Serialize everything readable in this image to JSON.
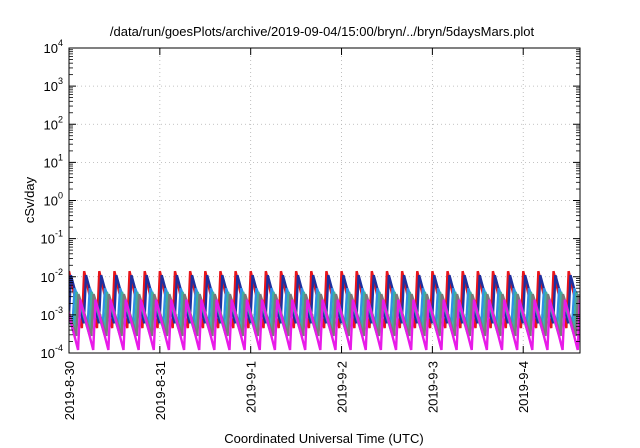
{
  "chart_data": {
    "type": "line",
    "title": "/data/run/goesPlots/archive/2019-09-04/15:00/bryn/../bryn/5daysMars.plot",
    "xlabel": "Coordinated Universal Time (UTC)",
    "ylabel": "cSv/day",
    "yscale": "log",
    "ylim": [
      0.0001,
      10000
    ],
    "xlim": [
      "2019-08-30T00:00",
      "2019-09-04T15:00"
    ],
    "grid": true,
    "legend": "none",
    "y_ticks": [
      {
        "base": "10",
        "exp": "-4"
      },
      {
        "base": "10",
        "exp": "-3"
      },
      {
        "base": "10",
        "exp": "-2"
      },
      {
        "base": "10",
        "exp": "-1"
      },
      {
        "base": "10",
        "exp": "0"
      },
      {
        "base": "10",
        "exp": "1"
      },
      {
        "base": "10",
        "exp": "2"
      },
      {
        "base": "10",
        "exp": "3"
      },
      {
        "base": "10",
        "exp": "4"
      }
    ],
    "x_ticks": [
      "2019-8-30",
      "2019-8-31",
      "2019-9-1",
      "2019-9-2",
      "2019-9-3",
      "2019-9-4"
    ],
    "x_tick_dates": [
      "2019-08-30T00:00",
      "2019-08-31T00:00",
      "2019-09-01T00:00",
      "2019-09-02T00:00",
      "2019-09-03T00:00",
      "2019-09-04T00:00"
    ],
    "sawtooth_period_hours": 4,
    "series": [
      {
        "color": "#e8141b",
        "peak": 0.014,
        "trough": 0.00045,
        "phase_hours": 0.0
      },
      {
        "color": "#1f2f9e",
        "peak": 0.011,
        "trough": 0.0006,
        "phase_hours": 0.5
      },
      {
        "color": "#2f8fe8",
        "peak": 0.005,
        "trough": 0.0005,
        "phase_hours": 1.5
      },
      {
        "color": "#3fb0a0",
        "peak": 0.004,
        "trough": 0.0003,
        "phase_hours": 2.0
      },
      {
        "color": "#7a7a7a",
        "peak": 0.0035,
        "trough": 0.00028,
        "phase_hours": 2.5
      },
      {
        "color": "#e81be8",
        "peak": 0.0025,
        "trough": 0.00012,
        "phase_hours": 3.0
      }
    ]
  }
}
